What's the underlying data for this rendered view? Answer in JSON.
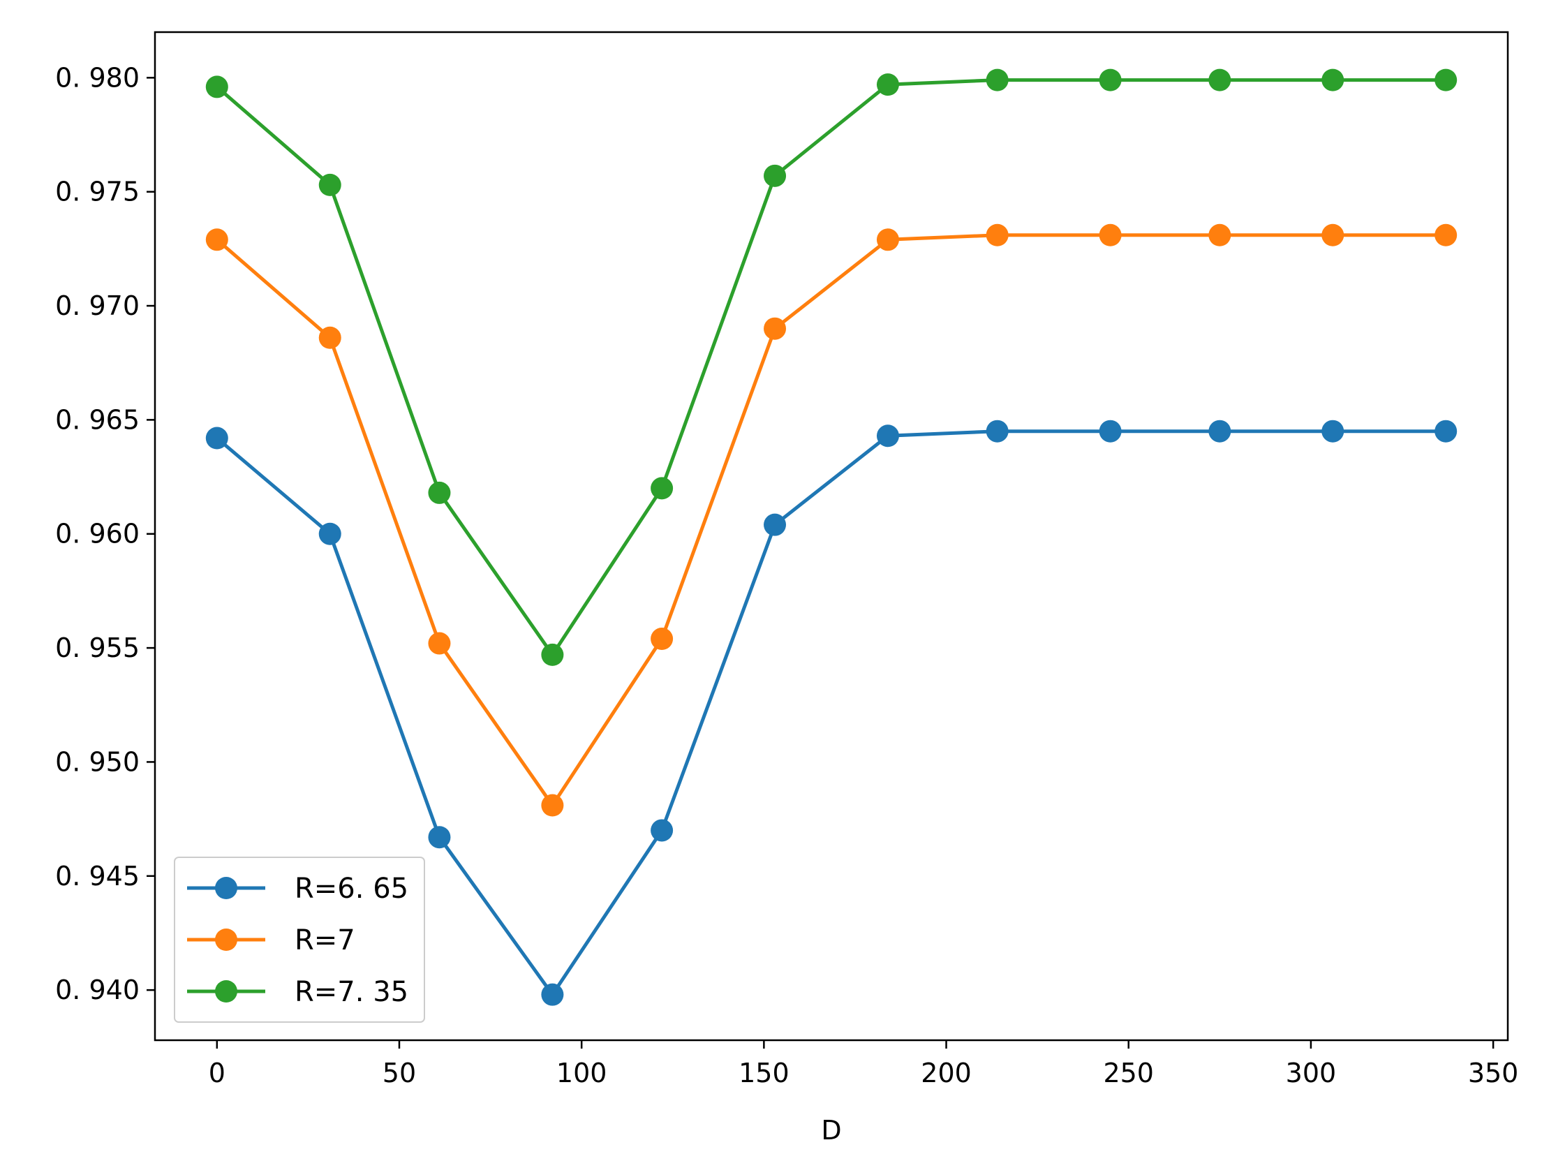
{
  "chart_data": {
    "type": "line",
    "title": "",
    "xlabel": "D",
    "ylabel": "",
    "x": [
      0,
      31,
      61,
      92,
      122,
      153,
      184,
      214,
      245,
      275,
      306,
      337
    ],
    "xlim": [
      -17,
      354
    ],
    "ylim": [
      0.9378,
      0.982
    ],
    "xticks": [
      0,
      50,
      100,
      150,
      200,
      250,
      300,
      350
    ],
    "xtick_labels": [
      "0",
      "50",
      "100",
      "150",
      "200",
      "250",
      "300",
      "350"
    ],
    "yticks": [
      0.94,
      0.945,
      0.95,
      0.955,
      0.96,
      0.965,
      0.97,
      0.975,
      0.98
    ],
    "ytick_labels": [
      "0. 940",
      "0. 945",
      "0. 950",
      "0. 955",
      "0. 960",
      "0. 965",
      "0. 970",
      "0. 975",
      "0. 980"
    ],
    "grid": false,
    "legend_position": "lower-left",
    "marker": "circle",
    "series": [
      {
        "name": "R=6. 65",
        "color": "#1f77b4",
        "values": [
          0.9642,
          0.96,
          0.9467,
          0.9398,
          0.947,
          0.9604,
          0.9643,
          0.9645,
          0.9645,
          0.9645,
          0.9645,
          0.9645
        ]
      },
      {
        "name": "R=7",
        "color": "#ff7f0e",
        "values": [
          0.9729,
          0.9686,
          0.9552,
          0.9481,
          0.9554,
          0.969,
          0.9729,
          0.9731,
          0.9731,
          0.9731,
          0.9731,
          0.9731
        ]
      },
      {
        "name": "R=7. 35",
        "color": "#2ca02c",
        "values": [
          0.9796,
          0.9753,
          0.9618,
          0.9547,
          0.962,
          0.9757,
          0.9797,
          0.9799,
          0.9799,
          0.9799,
          0.9799,
          0.9799
        ]
      }
    ]
  }
}
